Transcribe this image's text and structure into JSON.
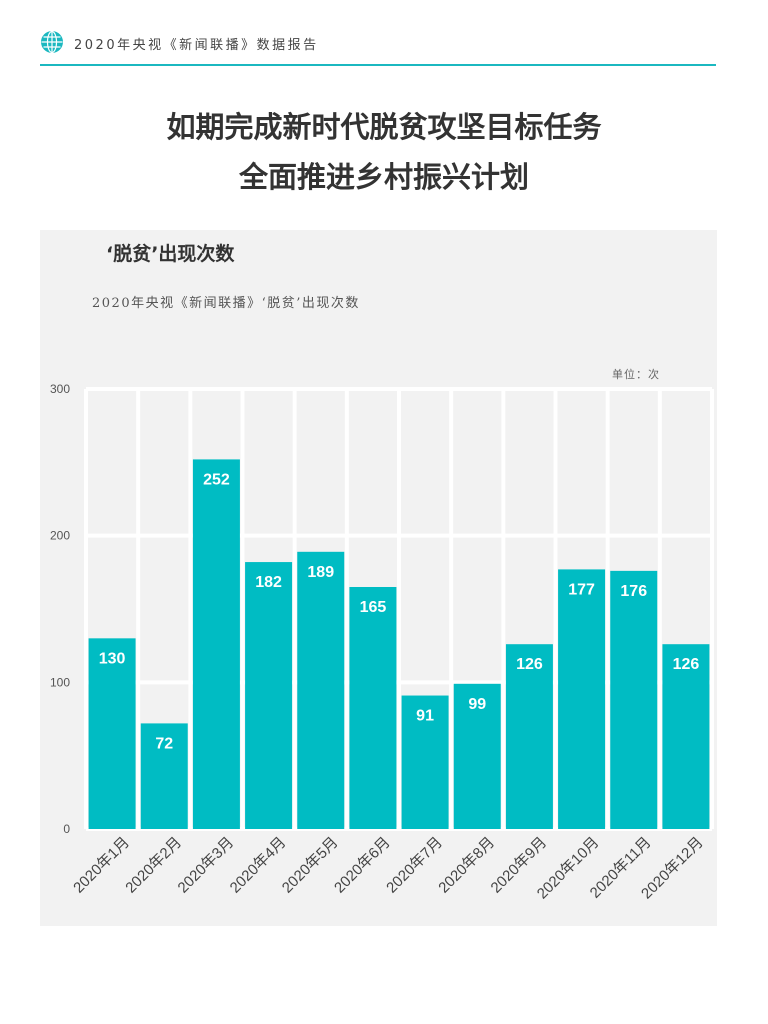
{
  "header": {
    "text": "2020年央视《新闻联播》数据报告",
    "icon": "globe-icon",
    "accent_color": "#1bb8c0"
  },
  "title": {
    "line1": "如期完成新时代脱贫攻坚目标任务",
    "line2": "全面推进乡村振兴计划"
  },
  "chart_data": {
    "type": "bar",
    "title": "‘脱贫’出现次数",
    "subtitle": "2020年央视《新闻联播》‘脱贫’出现次数",
    "unit": "单位：次",
    "categories": [
      "2020年1月",
      "2020年2月",
      "2020年3月",
      "2020年4月",
      "2020年5月",
      "2020年6月",
      "2020年7月",
      "2020年8月",
      "2020年9月",
      "2020年10月",
      "2020年11月",
      "2020年12月"
    ],
    "values": [
      130,
      72,
      252,
      182,
      189,
      165,
      91,
      99,
      126,
      177,
      176,
      126
    ],
    "ylim": [
      0,
      300
    ],
    "yticks": [
      0,
      100,
      200,
      300
    ],
    "bar_color": "#00bcc3",
    "grid": true,
    "data_labels": true
  }
}
